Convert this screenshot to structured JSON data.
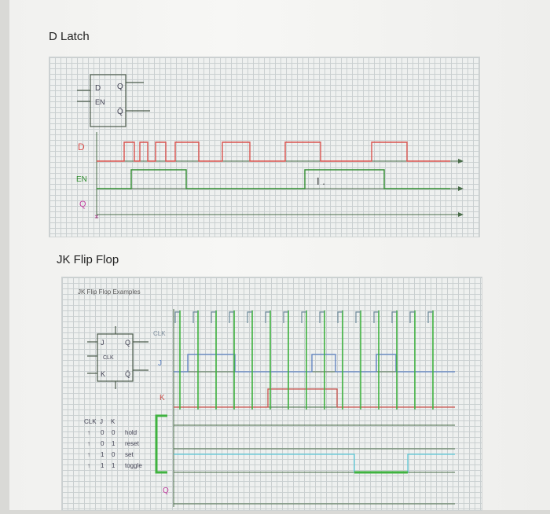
{
  "d_latch": {
    "title": "D Latch",
    "signals": {
      "d": "D",
      "en": "EN",
      "q": "Q"
    },
    "symbol": {
      "d_pin": "D",
      "q_pin": "Q",
      "en_pin": "EN",
      "qbar_pin": "Q̄"
    },
    "annotation": "I .",
    "colors": {
      "d": "#d9534f",
      "en": "#2e8b2e",
      "q": "#c0409f",
      "axis": "#4a6d4a"
    }
  },
  "jk": {
    "title": "JK Flip Flop",
    "subtitle": "JK Flip Flop Examples",
    "signals": {
      "clk": "CLK",
      "j": "J",
      "k": "K",
      "q": "Q"
    },
    "symbol": {
      "j_pin": "J",
      "q_pin": "Q",
      "clk_pin": "CLK",
      "k_pin": "K",
      "qbar_pin": "Q̄"
    },
    "table": {
      "headers": [
        "CLK",
        "J",
        "K"
      ],
      "rows": [
        [
          "↑",
          "0",
          "0",
          "hold"
        ],
        [
          "↑",
          "0",
          "1",
          "reset"
        ],
        [
          "↑",
          "1",
          "0",
          "set"
        ],
        [
          "↑",
          "1",
          "1",
          "toggle"
        ]
      ]
    },
    "colors": {
      "clk": "#3fb23f",
      "j": "#5a7fc0",
      "k": "#c8504a",
      "q": "#5bc8d6"
    }
  }
}
